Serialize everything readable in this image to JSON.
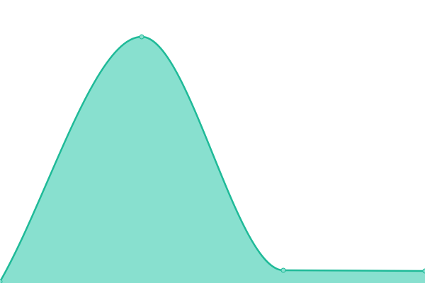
{
  "chart_data": {
    "type": "area",
    "values": [
      2,
      348,
      18,
      17
    ],
    "ylim": [
      0,
      400
    ],
    "color": "#1fba98",
    "fill": "#88e0cf"
  }
}
